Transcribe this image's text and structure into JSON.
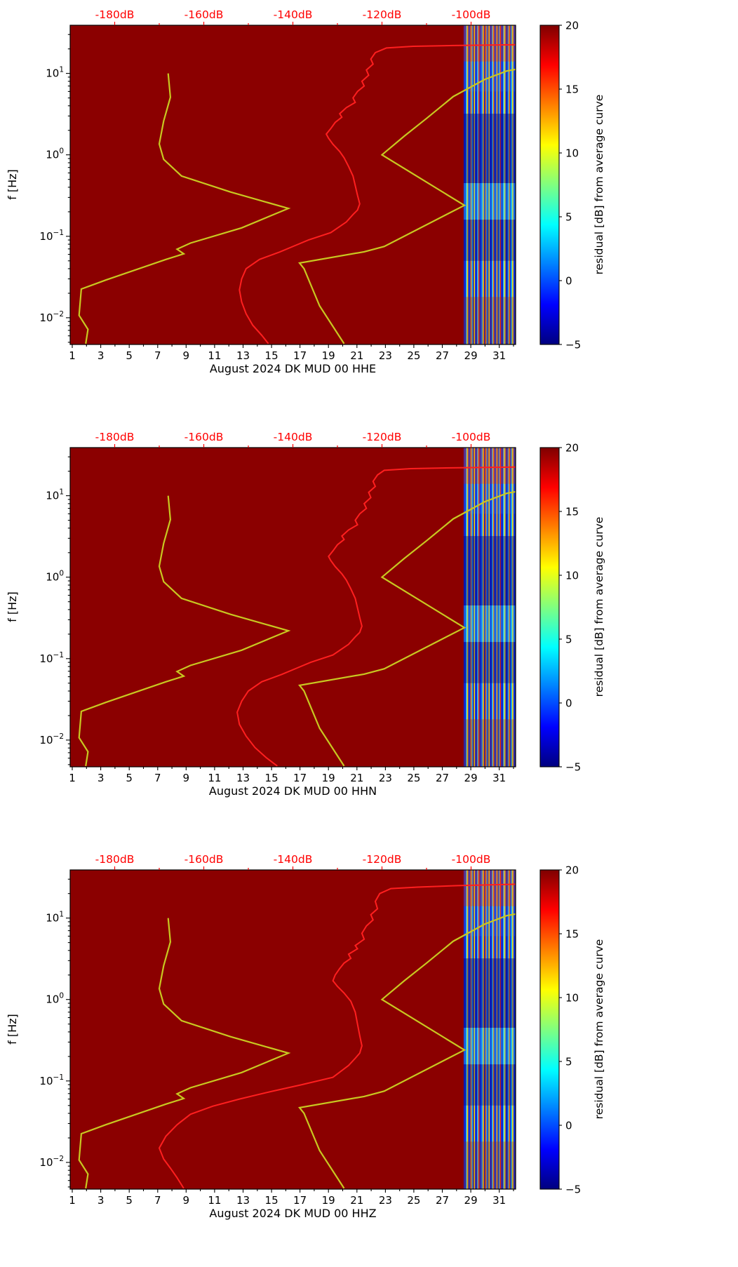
{
  "chart_data": {
    "type": "heatmap",
    "shared": {
      "ylabel": "f [Hz]",
      "y_tick_exponents": [
        1,
        0,
        -1,
        -2
      ],
      "f_range": [
        0.0047,
        39
      ],
      "x_ticks": [
        1,
        3,
        5,
        7,
        9,
        11,
        13,
        15,
        17,
        19,
        21,
        23,
        25,
        27,
        29,
        31
      ],
      "x_range_days": [
        0.85,
        32.15
      ],
      "top_axis": {
        "labels": [
          "-180dB",
          "-160dB",
          "-140dB",
          "-120dB",
          "-100dB"
        ],
        "values": [
          -180,
          -160,
          -140,
          -120,
          -100
        ],
        "range": [
          -190,
          -90
        ],
        "color": "#ff0000"
      },
      "colorbar": {
        "label": "residual [dB] from average curve",
        "ticks": [
          "20",
          "15",
          "10",
          "5",
          "0",
          "−5"
        ],
        "tick_values": [
          20,
          15,
          10,
          5,
          0,
          -5
        ],
        "range": [
          -5,
          20
        ],
        "colormap": "jet"
      },
      "background_value_color": "#8b0000",
      "curves": {
        "red_color": "#ff1f1f",
        "yellow_color": "#c8c821",
        "noise_model_low_dB_Hz": [
          [
            -186.5,
            0.0048
          ],
          [
            -186,
            0.0072
          ],
          [
            -188,
            0.0107
          ],
          [
            -187.5,
            0.0225
          ],
          [
            -182,
            0.029
          ],
          [
            -168.5,
            0.052
          ],
          [
            -164.5,
            0.061
          ],
          [
            -166,
            0.0695
          ],
          [
            -163,
            0.0825
          ],
          [
            -151.5,
            0.127
          ],
          [
            -141,
            0.22
          ],
          [
            -154,
            0.35
          ],
          [
            -165,
            0.55
          ],
          [
            -169,
            0.88
          ],
          [
            -170,
            1.36
          ],
          [
            -169,
            2.6
          ],
          [
            -167.5,
            5.1
          ],
          [
            -168,
            10
          ]
        ],
        "noise_model_high_dB_Hz": [
          [
            -128.5,
            0.0048
          ],
          [
            -134,
            0.014
          ],
          [
            -137.5,
            0.04
          ],
          [
            -138.5,
            0.047
          ],
          [
            -124,
            0.0645
          ],
          [
            -119.5,
            0.075
          ],
          [
            -101.5,
            0.24
          ],
          [
            -120,
            1.0
          ],
          [
            -115,
            1.7
          ],
          [
            -110,
            2.8
          ],
          [
            -104,
            5.2
          ],
          [
            -97,
            8.4
          ],
          [
            -92,
            10.7
          ],
          [
            -90,
            11.2
          ]
        ]
      },
      "data_region": {
        "start_day": 28.5,
        "end_day": 32.15,
        "stripe_colors": [
          "#0d2ce0",
          "#0a1fc8",
          "#35d2f5",
          "#ffc800",
          "#0b24d2",
          "#1038f0",
          "#ff6a00",
          "#28c4f2",
          "#091cc0",
          "#ffd900",
          "#0e30e8",
          "#0a22cc",
          "#3fdcf8",
          "#ff3000",
          "#0c2ad6",
          "#123cf4",
          "#2ab8ee",
          "#ffb300",
          "#091ec4",
          "#ff5500",
          "#20aae8",
          "#0b26d0",
          "#ffe000",
          "#1134ec",
          "#0a20c8",
          "#38d0f4",
          "#ff7f00",
          "#0d2cd8",
          "#1642f8",
          "#ffc100",
          "#0a23ce",
          "#2cc0f0",
          "#ff2600",
          "#0f32e6",
          "#0b1fc6",
          "#42e0fa",
          "#ffd200",
          "#0c28d4",
          "#091dc2",
          "#26b2ea",
          "#ff6f00",
          "#0e2edc",
          "#1cc8f4",
          "#ffdb00",
          "#1236f0",
          "#0a21ca"
        ]
      }
    },
    "subplots": [
      {
        "channel": "HHE",
        "xlabel": "August 2024 DK MUD 00 HHE",
        "mean_psd_dB_Hz": [
          [
            -90,
            22.5
          ],
          [
            -104,
            22
          ],
          [
            -113,
            21.5
          ],
          [
            -119,
            20.5
          ],
          [
            -121.5,
            18
          ],
          [
            -122.5,
            15
          ],
          [
            -122,
            13
          ],
          [
            -123.5,
            11
          ],
          [
            -123,
            9.5
          ],
          [
            -124.5,
            8
          ],
          [
            -124,
            7
          ],
          [
            -125.5,
            6
          ],
          [
            -126.5,
            5
          ],
          [
            -126,
            4.4
          ],
          [
            -128,
            3.8
          ],
          [
            -129.5,
            3.2
          ],
          [
            -129,
            2.9
          ],
          [
            -130.5,
            2.5
          ],
          [
            -131.5,
            2.1
          ],
          [
            -132.5,
            1.8
          ],
          [
            -132,
            1.6
          ],
          [
            -131,
            1.35
          ],
          [
            -129.5,
            1.1
          ],
          [
            -128.5,
            0.92
          ],
          [
            -127.5,
            0.72
          ],
          [
            -126.5,
            0.55
          ],
          [
            -126,
            0.42
          ],
          [
            -125.5,
            0.32
          ],
          [
            -125,
            0.25
          ],
          [
            -125.5,
            0.21
          ],
          [
            -126.5,
            0.185
          ],
          [
            -128,
            0.15
          ],
          [
            -131.5,
            0.111
          ],
          [
            -136.5,
            0.09
          ],
          [
            -139.5,
            0.077
          ],
          [
            -143,
            0.064
          ],
          [
            -147.5,
            0.052
          ],
          [
            -150.5,
            0.04
          ],
          [
            -151.5,
            0.03
          ],
          [
            -152,
            0.022
          ],
          [
            -151.5,
            0.0156
          ],
          [
            -150.5,
            0.0112
          ],
          [
            -149,
            0.0081
          ],
          [
            -147,
            0.0061
          ],
          [
            -145.5,
            0.0048
          ]
        ]
      },
      {
        "channel": "HHN",
        "xlabel": "August 2024 DK MUD 00 HHN",
        "mean_psd_dB_Hz": [
          [
            -90,
            22.5
          ],
          [
            -104.5,
            22
          ],
          [
            -113.5,
            21.5
          ],
          [
            -119.5,
            20.5
          ],
          [
            -121,
            18
          ],
          [
            -122,
            15
          ],
          [
            -121.5,
            13
          ],
          [
            -123,
            11
          ],
          [
            -122.5,
            9.5
          ],
          [
            -124,
            8
          ],
          [
            -123.5,
            7
          ],
          [
            -125,
            6
          ],
          [
            -126,
            5
          ],
          [
            -125.5,
            4.4
          ],
          [
            -127.5,
            3.8
          ],
          [
            -129,
            3.2
          ],
          [
            -128.5,
            2.9
          ],
          [
            -130,
            2.5
          ],
          [
            -131,
            2.1
          ],
          [
            -132,
            1.8
          ],
          [
            -131.5,
            1.6
          ],
          [
            -130.5,
            1.35
          ],
          [
            -129,
            1.1
          ],
          [
            -128,
            0.92
          ],
          [
            -127,
            0.72
          ],
          [
            -126,
            0.55
          ],
          [
            -125.5,
            0.42
          ],
          [
            -125,
            0.32
          ],
          [
            -124.5,
            0.25
          ],
          [
            -125,
            0.21
          ],
          [
            -126,
            0.185
          ],
          [
            -127.5,
            0.15
          ],
          [
            -131,
            0.111
          ],
          [
            -136,
            0.09
          ],
          [
            -139,
            0.077
          ],
          [
            -142.5,
            0.064
          ],
          [
            -147,
            0.052
          ],
          [
            -150,
            0.04
          ],
          [
            -151.5,
            0.03
          ],
          [
            -152.5,
            0.022
          ],
          [
            -152,
            0.0156
          ],
          [
            -150.5,
            0.0112
          ],
          [
            -148.5,
            0.0081
          ],
          [
            -146,
            0.0061
          ],
          [
            -143.5,
            0.0048
          ]
        ]
      },
      {
        "channel": "HHZ",
        "xlabel": "August 2024 DK MUD 00 HHZ",
        "mean_psd_dB_Hz": [
          [
            -90,
            26
          ],
          [
            -103,
            25
          ],
          [
            -112,
            24
          ],
          [
            -118,
            23
          ],
          [
            -120.5,
            20
          ],
          [
            -121.5,
            16
          ],
          [
            -121,
            13
          ],
          [
            -122.5,
            11
          ],
          [
            -122,
            9.5
          ],
          [
            -123.5,
            8
          ],
          [
            -124.5,
            6.5
          ],
          [
            -124,
            5.5
          ],
          [
            -126,
            4.6
          ],
          [
            -125.5,
            4.2
          ],
          [
            -127.5,
            3.6
          ],
          [
            -127,
            3.2
          ],
          [
            -128.5,
            2.8
          ],
          [
            -129.5,
            2.4
          ],
          [
            -130.5,
            2.0
          ],
          [
            -131,
            1.7
          ],
          [
            -130,
            1.45
          ],
          [
            -128.5,
            1.2
          ],
          [
            -127,
            0.95
          ],
          [
            -126,
            0.7
          ],
          [
            -125.5,
            0.5
          ],
          [
            -125,
            0.36
          ],
          [
            -124.5,
            0.27
          ],
          [
            -125,
            0.22
          ],
          [
            -126,
            0.19
          ],
          [
            -127.5,
            0.155
          ],
          [
            -131,
            0.111
          ],
          [
            -138,
            0.09
          ],
          [
            -145,
            0.074
          ],
          [
            -152,
            0.06
          ],
          [
            -158,
            0.049
          ],
          [
            -163,
            0.039
          ],
          [
            -166,
            0.029
          ],
          [
            -168.5,
            0.021
          ],
          [
            -170,
            0.015
          ],
          [
            -169,
            0.011
          ],
          [
            -167.5,
            0.0085
          ],
          [
            -166,
            0.0065
          ],
          [
            -164.5,
            0.0048
          ]
        ]
      }
    ]
  }
}
